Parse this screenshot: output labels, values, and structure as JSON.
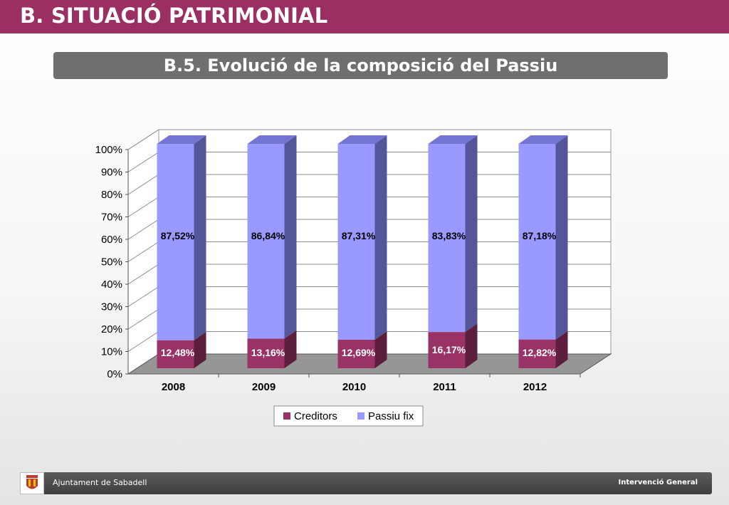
{
  "header": {
    "title": "B. SITUACIÓ PATRIMONIAL"
  },
  "section": {
    "subtitle": "B.5. Evolució de la composició del Passiu"
  },
  "footer": {
    "left_text": "Ajuntament de Sabadell",
    "right_text": "Intervenció General"
  },
  "chart_data": {
    "type": "bar",
    "stacked": true,
    "three_d": true,
    "categories": [
      "2008",
      "2009",
      "2010",
      "2011",
      "2012"
    ],
    "series": [
      {
        "name": "Creditors",
        "color": "#993366",
        "side_color": "#5c1e3d",
        "top_color": "#b5457f",
        "values": [
          12.48,
          13.16,
          12.69,
          16.17,
          12.82
        ],
        "labels": [
          "12,48%",
          "13,16%",
          "12,69%",
          "16,17%",
          "12,82%"
        ],
        "label_color": "#ffffff"
      },
      {
        "name": "Passiu fix",
        "color": "#9999ff",
        "side_color": "#555599",
        "top_color": "#7474d2",
        "values": [
          87.52,
          86.84,
          87.31,
          83.83,
          87.18
        ],
        "labels": [
          "87,52%",
          "86,84%",
          "87,31%",
          "83,83%",
          "87,18%"
        ],
        "label_color": "#000000"
      }
    ],
    "y_ticks": [
      "0%",
      "10%",
      "20%",
      "30%",
      "40%",
      "50%",
      "60%",
      "70%",
      "80%",
      "90%",
      "100%"
    ],
    "ylim": [
      0,
      100
    ],
    "grid": true,
    "legend_position": "bottom"
  }
}
